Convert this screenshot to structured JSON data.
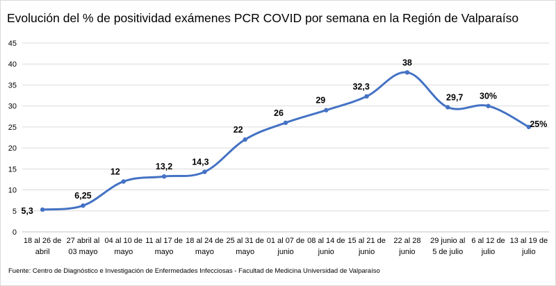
{
  "chart_data": {
    "type": "line",
    "title": "Evolución del % de positividad exámenes PCR COVID por semana en la Región de Valparaíso",
    "xlabel": "",
    "ylabel": "",
    "ylim": [
      0,
      45
    ],
    "yticks": [
      "0",
      "5",
      "10",
      "15",
      "20",
      "25",
      "30",
      "35",
      "40",
      "45"
    ],
    "grid": true,
    "line_color": "#4472c4",
    "categories": [
      [
        "18 al 26 de",
        "abril"
      ],
      [
        "27 abril al",
        "03 mayo"
      ],
      [
        "04 al 10 de",
        "mayo"
      ],
      [
        "11 al 17 de",
        "mayo"
      ],
      [
        "18 al 24 de",
        "mayo"
      ],
      [
        "25 al 31 de",
        "mayo"
      ],
      [
        "01 al 07 de",
        "junio"
      ],
      [
        "08 al 14 de",
        "junio"
      ],
      [
        "15 al 21 de",
        "junio"
      ],
      [
        "22 al 28",
        "junio"
      ],
      [
        "29 junio al",
        "5 de   julio"
      ],
      [
        "6 al 12 de",
        "julio"
      ],
      [
        "13 al 19 de",
        "julio"
      ]
    ],
    "values": [
      5.3,
      6.25,
      12,
      13.2,
      14.3,
      22,
      26,
      29,
      32.3,
      38,
      29.7,
      30,
      25
    ],
    "data_labels": [
      "5,3",
      "6,25",
      "12",
      "13,2",
      "14,3",
      "22",
      "26",
      "29",
      "32,3",
      "38",
      "29,7",
      "30%",
      "25%"
    ]
  },
  "source": "Fuente: Centro de Diagnóstico e Investigación de Enfermedades Infecciosas - Facultad de Medicina Universidad de Valparaíso"
}
